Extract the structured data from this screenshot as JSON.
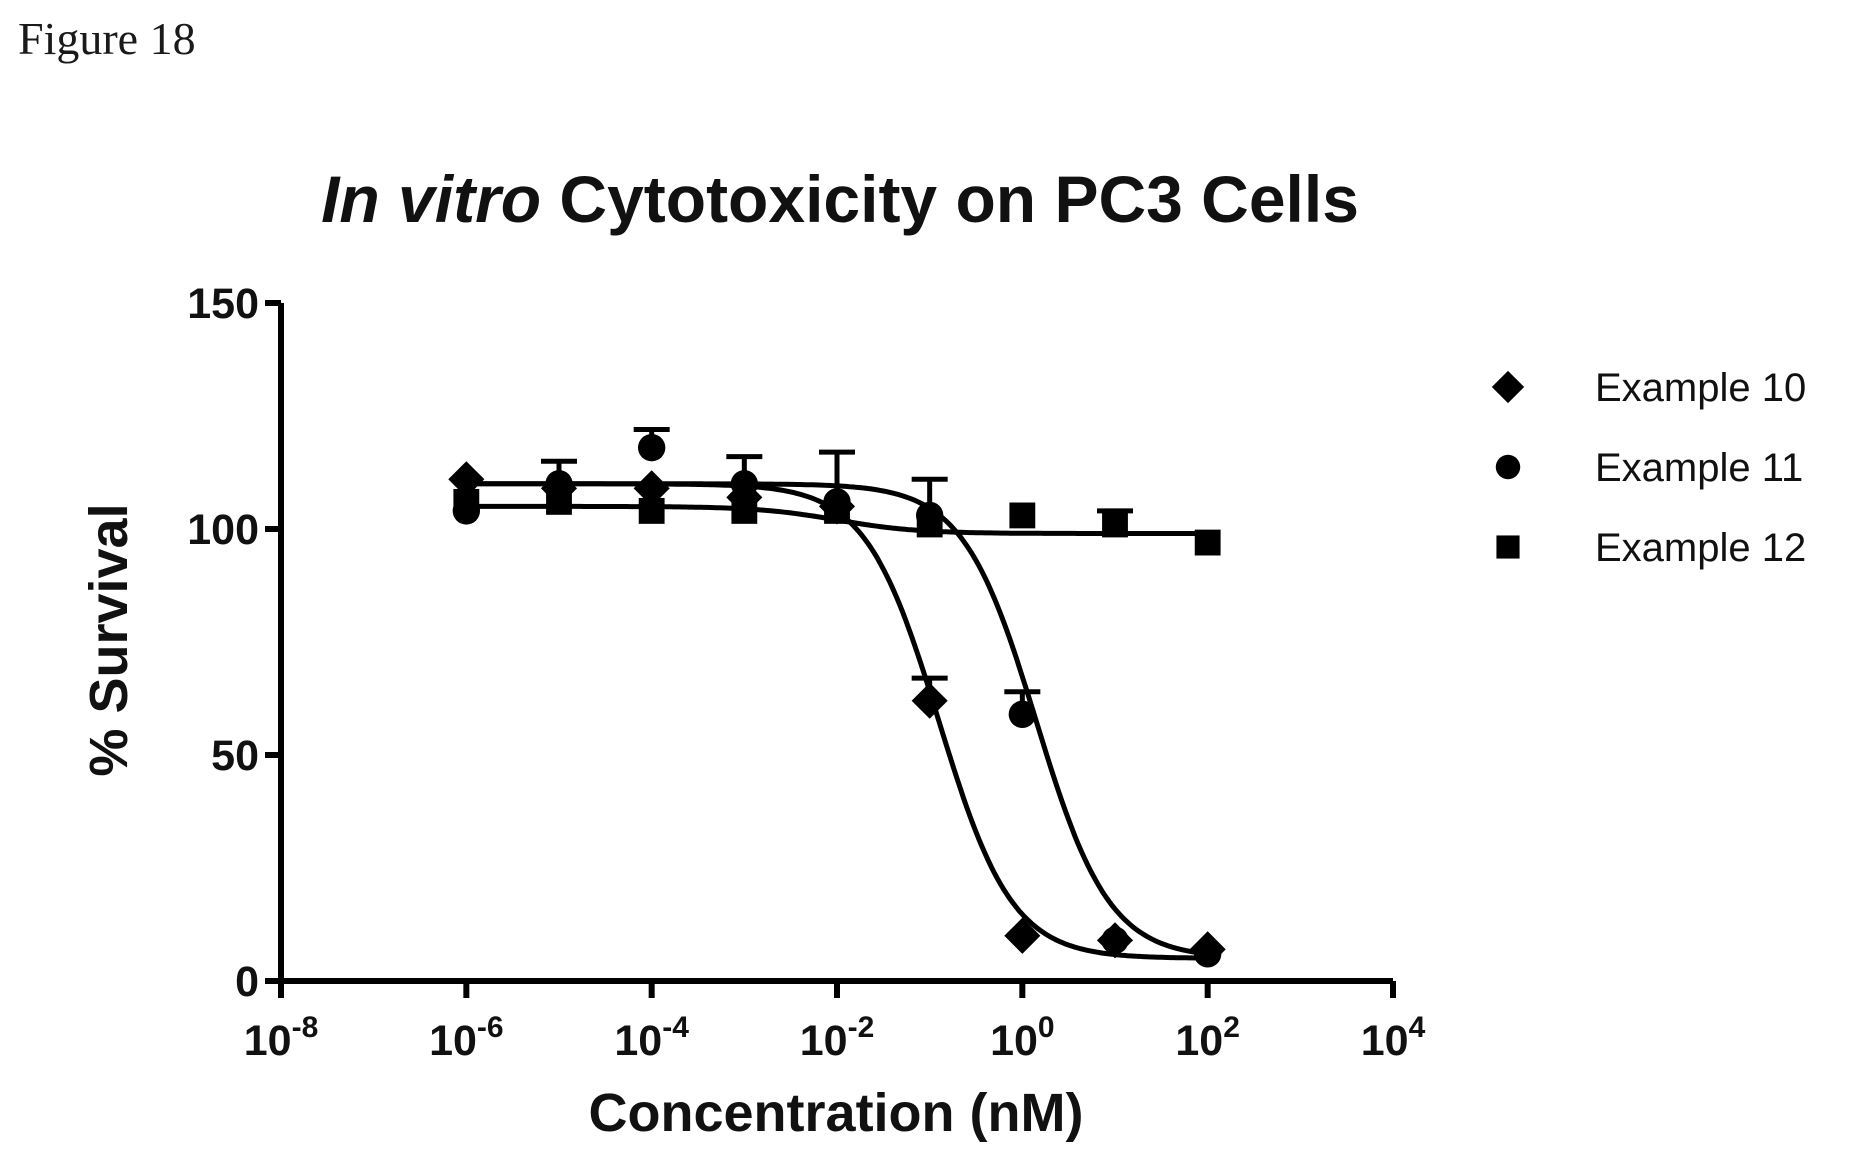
{
  "figure_label": "Figure 18",
  "chart_data": {
    "type": "scatter",
    "title": "In vitro Cytotoxicity on PC3 Cells",
    "title_parts": [
      {
        "text": "In vitro",
        "italic": true
      },
      {
        "text": " Cytotoxicity on PC3 Cells",
        "italic": false
      }
    ],
    "xlabel": "Concentration (nM)",
    "ylabel": "% Survival",
    "x_scale": "log",
    "xlim": [
      1e-08,
      10000.0
    ],
    "ylim": [
      0,
      150
    ],
    "x_ticks": [
      {
        "value": 1e-08,
        "base": "10",
        "exp": "-8"
      },
      {
        "value": 1e-06,
        "base": "10",
        "exp": "-6"
      },
      {
        "value": 0.0001,
        "base": "10",
        "exp": "-4"
      },
      {
        "value": 0.01,
        "base": "10",
        "exp": "-2"
      },
      {
        "value": 1,
        "base": "10",
        "exp": "0"
      },
      {
        "value": 100,
        "base": "10",
        "exp": "2"
      },
      {
        "value": 10000,
        "base": "10",
        "exp": "4"
      }
    ],
    "y_ticks": [
      {
        "value": 0,
        "label": "0"
      },
      {
        "value": 50,
        "label": "50"
      },
      {
        "value": 100,
        "label": "100"
      },
      {
        "value": 150,
        "label": "150"
      }
    ],
    "grid": false,
    "legend_position": "right",
    "series": [
      {
        "name": "Example 10",
        "marker": "diamond",
        "color": "#000000",
        "points": [
          {
            "x": 1e-06,
            "y": 111,
            "err": 0
          },
          {
            "x": 1e-05,
            "y": 109,
            "err": 0
          },
          {
            "x": 0.0001,
            "y": 109,
            "err": 0
          },
          {
            "x": 0.001,
            "y": 107,
            "err": 0
          },
          {
            "x": 0.01,
            "y": 105,
            "err": 0
          },
          {
            "x": 0.1,
            "y": 62,
            "err": 5
          },
          {
            "x": 1,
            "y": 10,
            "err": 0
          },
          {
            "x": 10,
            "y": 9,
            "err": 0
          },
          {
            "x": 100,
            "y": 7,
            "err": 0
          }
        ],
        "fit": {
          "top": 110,
          "bottom": 5,
          "log_ec50": -0.9,
          "hill": 1.1
        }
      },
      {
        "name": "Example 11",
        "marker": "circle",
        "color": "#000000",
        "points": [
          {
            "x": 1e-06,
            "y": 104,
            "err": 0
          },
          {
            "x": 1e-05,
            "y": 110,
            "err": 5
          },
          {
            "x": 0.0001,
            "y": 118,
            "err": 4
          },
          {
            "x": 0.001,
            "y": 110,
            "err": 6
          },
          {
            "x": 0.01,
            "y": 106,
            "err": 11
          },
          {
            "x": 0.1,
            "y": 103,
            "err": 8
          },
          {
            "x": 1,
            "y": 59,
            "err": 5
          },
          {
            "x": 10,
            "y": 9,
            "err": 0
          },
          {
            "x": 100,
            "y": 6,
            "err": 0
          }
        ],
        "fit": {
          "top": 110,
          "bottom": 5,
          "log_ec50": 0.15,
          "hill": 1.1
        }
      },
      {
        "name": "Example 12",
        "marker": "square",
        "color": "#000000",
        "points": [
          {
            "x": 1e-06,
            "y": 106,
            "err": 0
          },
          {
            "x": 1e-05,
            "y": 106,
            "err": 0
          },
          {
            "x": 0.0001,
            "y": 104,
            "err": 0
          },
          {
            "x": 0.001,
            "y": 104,
            "err": 0
          },
          {
            "x": 0.01,
            "y": 104,
            "err": 0
          },
          {
            "x": 0.1,
            "y": 101,
            "err": 0
          },
          {
            "x": 1,
            "y": 103,
            "err": 0
          },
          {
            "x": 10,
            "y": 101,
            "err": 3
          },
          {
            "x": 100,
            "y": 97,
            "err": 0
          }
        ],
        "fit": {
          "top": 105,
          "bottom": 99,
          "log_ec50": -2,
          "hill": 1
        }
      }
    ]
  }
}
